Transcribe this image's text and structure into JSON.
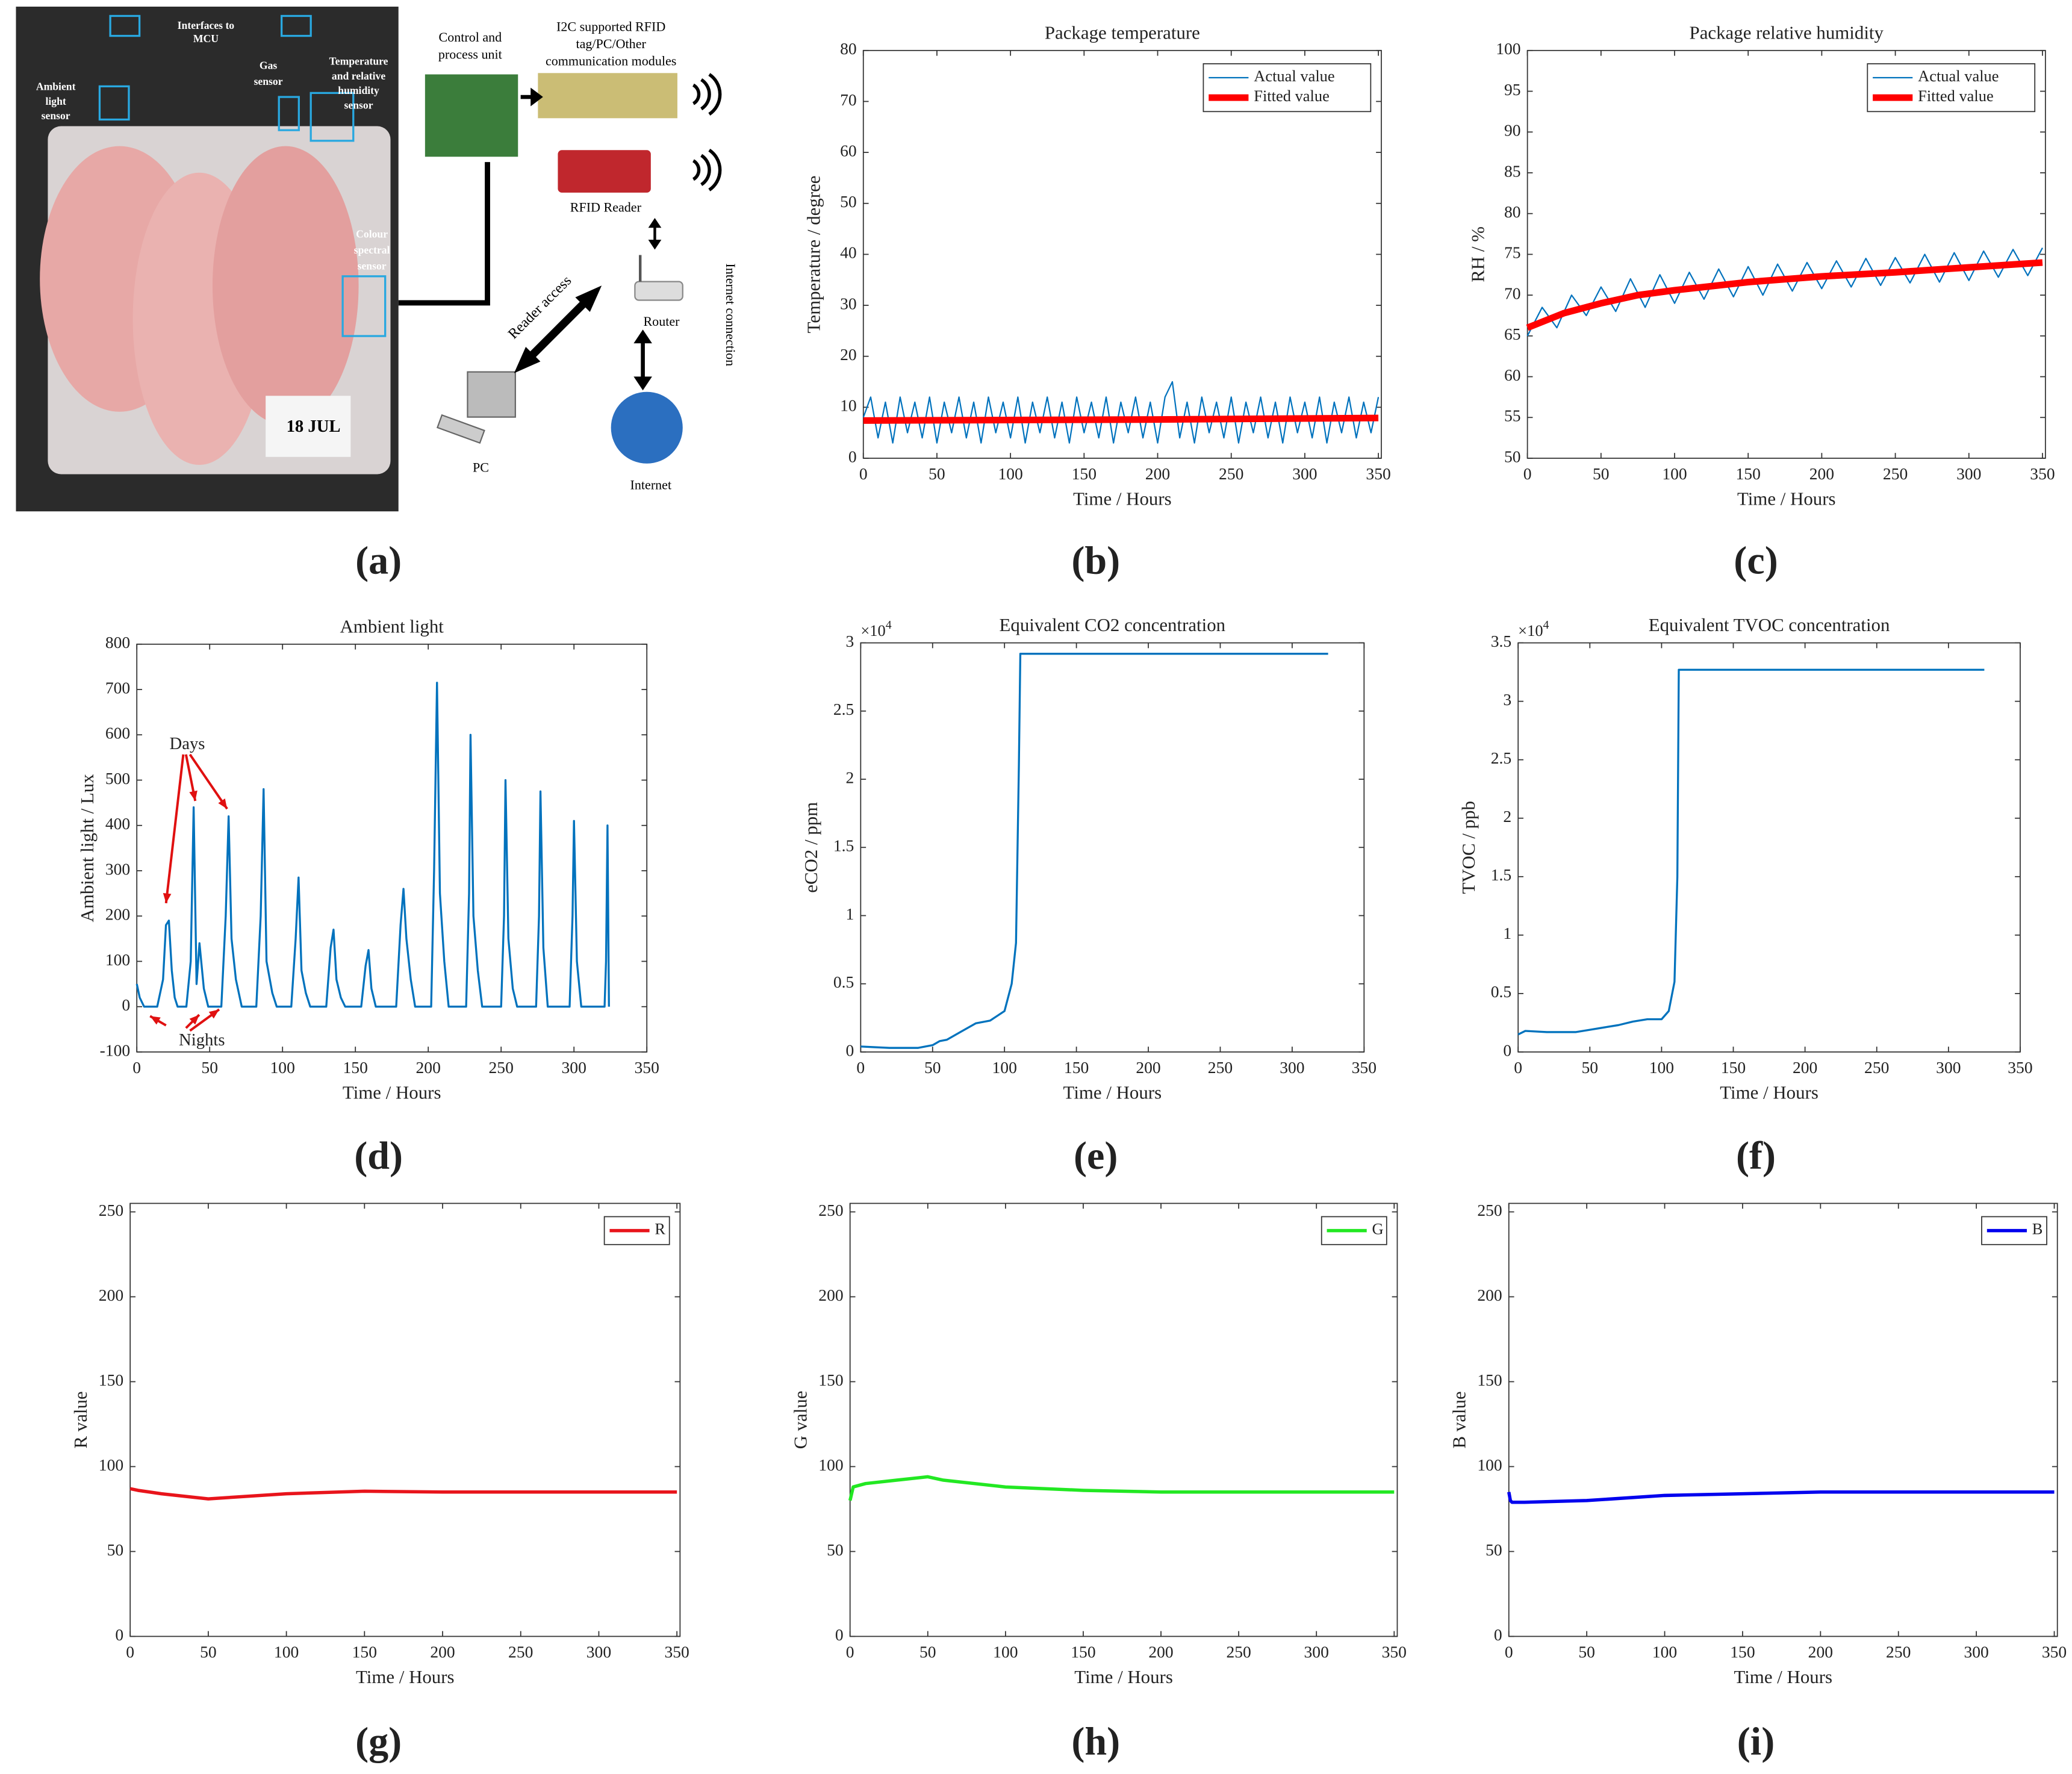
{
  "diagram": {
    "panel_label": "(a)",
    "labels": [
      [
        "Interfaces to",
        "MCU"
      ],
      [
        "Ambient",
        "light",
        "sensor"
      ],
      [
        "Gas",
        "sensor"
      ],
      [
        "Temperature",
        "and relative",
        "humidity",
        "sensor"
      ],
      [
        "Colour",
        "spectral",
        "sensor"
      ],
      [
        "18 JUL"
      ],
      [
        "Control and",
        "process unit"
      ],
      [
        "I2C supported RFID",
        "tag/PC/Other",
        "communication modules"
      ],
      [
        "RFID Reader"
      ],
      [
        "Router"
      ],
      [
        "Internet connection"
      ],
      [
        "Reader access"
      ],
      [
        "PC"
      ],
      [
        "Internet"
      ]
    ]
  },
  "chart_data": [
    {
      "type": "line",
      "panel_label": "(b)",
      "title": "Package temperature",
      "xlabel": "Time / Hours",
      "ylabel": "Temperature / degree",
      "xlim": [
        0,
        352
      ],
      "xticks": [
        0,
        50,
        100,
        150,
        200,
        250,
        300,
        350
      ],
      "ylim": [
        0,
        80
      ],
      "yticks": [
        0,
        10,
        20,
        30,
        40,
        50,
        60,
        70,
        80
      ],
      "legend": "upper right",
      "series": [
        {
          "name": "Actual value",
          "color": "#0072bd",
          "width": 1,
          "x": [
            0,
            5,
            10,
            15,
            20,
            25,
            30,
            35,
            40,
            45,
            50,
            55,
            60,
            65,
            70,
            75,
            80,
            85,
            90,
            95,
            100,
            105,
            110,
            115,
            120,
            125,
            130,
            135,
            140,
            145,
            150,
            155,
            160,
            165,
            170,
            175,
            180,
            185,
            190,
            195,
            200,
            205,
            210,
            215,
            220,
            225,
            230,
            235,
            240,
            245,
            250,
            255,
            260,
            265,
            270,
            275,
            280,
            285,
            290,
            295,
            300,
            305,
            310,
            315,
            320,
            325,
            330,
            335,
            340,
            345,
            350
          ],
          "values": [
            8,
            12,
            4,
            11,
            3,
            12,
            5,
            11,
            4,
            12,
            3,
            11,
            5,
            12,
            4,
            11,
            3,
            12,
            5,
            11,
            4,
            12,
            3,
            11,
            5,
            12,
            4,
            11,
            3,
            12,
            5,
            11,
            4,
            12,
            3,
            11,
            5,
            12,
            4,
            11,
            3,
            12,
            15,
            4,
            11,
            3,
            12,
            5,
            11,
            4,
            12,
            3,
            11,
            5,
            12,
            4,
            11,
            3,
            12,
            5,
            11,
            4,
            12,
            3,
            11,
            5,
            12,
            4,
            11,
            5,
            12
          ]
        },
        {
          "name": "Fitted value",
          "color": "#ff0000",
          "width": 5,
          "x": [
            0,
            100,
            200,
            350
          ],
          "values": [
            7.4,
            7.5,
            7.6,
            7.9
          ]
        }
      ]
    },
    {
      "type": "line",
      "panel_label": "(c)",
      "title": "Package relative humidity",
      "xlabel": "Time / Hours",
      "ylabel": "RH / %",
      "xlim": [
        0,
        352
      ],
      "xticks": [
        0,
        50,
        100,
        150,
        200,
        250,
        300,
        350
      ],
      "ylim": [
        50,
        100
      ],
      "yticks": [
        50,
        55,
        60,
        65,
        70,
        75,
        80,
        85,
        90,
        95,
        100
      ],
      "legend": "upper right",
      "series": [
        {
          "name": "Actual value",
          "color": "#0072bd",
          "width": 1,
          "x": [
            0,
            10,
            20,
            30,
            40,
            50,
            60,
            70,
            80,
            90,
            100,
            110,
            120,
            130,
            140,
            150,
            160,
            170,
            180,
            190,
            200,
            210,
            220,
            230,
            240,
            250,
            260,
            270,
            280,
            290,
            300,
            310,
            320,
            330,
            340,
            350
          ],
          "values": [
            65,
            68.5,
            66,
            70,
            67.5,
            71,
            68,
            72,
            68.5,
            72.5,
            69,
            72.8,
            69.5,
            73.2,
            69.8,
            73.5,
            70,
            73.8,
            70.5,
            74,
            70.8,
            74.2,
            71,
            74.5,
            71.2,
            74.6,
            71.5,
            75,
            71.6,
            75.2,
            71.8,
            75.4,
            72.2,
            75.6,
            72.4,
            75.8
          ]
        },
        {
          "name": "Fitted value",
          "color": "#ff0000",
          "width": 5,
          "x": [
            0,
            25,
            50,
            75,
            100,
            150,
            200,
            250,
            300,
            350
          ],
          "values": [
            66,
            67.8,
            69,
            70,
            70.6,
            71.6,
            72.3,
            72.8,
            73.4,
            74
          ]
        }
      ]
    },
    {
      "type": "line",
      "panel_label": "(d)",
      "title": "Ambient light",
      "xlabel": "Time / Hours",
      "ylabel": "Ambient light / Lux",
      "xlim": [
        0,
        350
      ],
      "xticks": [
        0,
        50,
        100,
        150,
        200,
        250,
        300,
        350
      ],
      "ylim": [
        -100,
        800
      ],
      "yticks": [
        -100,
        0,
        100,
        200,
        300,
        400,
        500,
        600,
        700,
        800
      ],
      "annotations": [
        "Days",
        "Nights"
      ],
      "series": [
        {
          "color": "#0072bd",
          "width": 1.5,
          "x": [
            0,
            2,
            5,
            10,
            14,
            18,
            20,
            22,
            24,
            26,
            28,
            34,
            37,
            39,
            41,
            43,
            46,
            49,
            58,
            61,
            63,
            65,
            68,
            72,
            82,
            85,
            87,
            89,
            93,
            96,
            106,
            109,
            111,
            113,
            116,
            119,
            130,
            133,
            135,
            137,
            140,
            143,
            154,
            157,
            159,
            161,
            164,
            178,
            181,
            183,
            185,
            188,
            191,
            202,
            204,
            206,
            208,
            211,
            214,
            226,
            228,
            229,
            231,
            234,
            237,
            250,
            252,
            253,
            255,
            258,
            261,
            274,
            276,
            277,
            279,
            282,
            297,
            299,
            300,
            302,
            305,
            321,
            322,
            323,
            324
          ],
          "values": [
            50,
            20,
            0,
            0,
            0,
            60,
            180,
            190,
            80,
            20,
            0,
            0,
            100,
            440,
            50,
            140,
            40,
            0,
            0,
            200,
            420,
            150,
            60,
            0,
            0,
            200,
            480,
            100,
            30,
            0,
            0,
            150,
            285,
            80,
            30,
            0,
            0,
            130,
            170,
            60,
            20,
            0,
            0,
            90,
            125,
            40,
            0,
            0,
            180,
            260,
            150,
            60,
            0,
            0,
            300,
            715,
            250,
            100,
            0,
            0,
            250,
            600,
            200,
            80,
            0,
            0,
            200,
            500,
            150,
            40,
            0,
            0,
            200,
            475,
            130,
            0,
            0,
            200,
            410,
            100,
            0,
            0,
            100,
            400,
            0
          ]
        }
      ]
    },
    {
      "type": "line",
      "panel_label": "(e)",
      "title": "Equivalent CO2 concentration",
      "xlabel": "Time / Hours",
      "ylabel": "eCO2 / ppm",
      "y_multiplier": "×10",
      "y_multiplier_exponent": "4",
      "xlim": [
        0,
        350
      ],
      "xticks": [
        0,
        50,
        100,
        150,
        200,
        250,
        300,
        350
      ],
      "ylim": [
        0,
        3
      ],
      "yticks": [
        0,
        0.5,
        1,
        1.5,
        2,
        2.5,
        3
      ],
      "series": [
        {
          "color": "#0072bd",
          "width": 1.5,
          "x": [
            0,
            10,
            20,
            40,
            50,
            55,
            60,
            70,
            80,
            90,
            100,
            105,
            108,
            110,
            111,
            112,
            325
          ],
          "values": [
            0.04,
            0.035,
            0.03,
            0.03,
            0.05,
            0.08,
            0.09,
            0.15,
            0.21,
            0.23,
            0.3,
            0.5,
            0.8,
            2.1,
            2.92,
            2.92,
            2.92
          ]
        }
      ]
    },
    {
      "type": "line",
      "panel_label": "(f)",
      "title": "Equivalent TVOC concentration",
      "xlabel": "Time / Hours",
      "ylabel": "TVOC / ppb",
      "y_multiplier": "×10",
      "y_multiplier_exponent": "4",
      "xlim": [
        0,
        350
      ],
      "xticks": [
        0,
        50,
        100,
        150,
        200,
        250,
        300,
        350
      ],
      "ylim": [
        0,
        3.5
      ],
      "yticks": [
        0,
        0.5,
        1,
        1.5,
        2,
        2.5,
        3,
        3.5
      ],
      "series": [
        {
          "color": "#0072bd",
          "width": 1.5,
          "x": [
            0,
            5,
            20,
            40,
            50,
            60,
            70,
            80,
            90,
            100,
            105,
            109,
            111,
            112,
            113,
            325
          ],
          "values": [
            0.15,
            0.18,
            0.17,
            0.17,
            0.19,
            0.21,
            0.23,
            0.26,
            0.28,
            0.28,
            0.35,
            0.6,
            1.5,
            3.27,
            3.27,
            3.27
          ]
        }
      ]
    },
    {
      "type": "line",
      "panel_label": "(g)",
      "xlabel": "Time / Hours",
      "ylabel": "R value",
      "legend": "upper right",
      "xlim": [
        0,
        352
      ],
      "xticks": [
        0,
        50,
        100,
        150,
        200,
        250,
        300,
        350
      ],
      "ylim": [
        0,
        255
      ],
      "yticks": [
        0,
        50,
        100,
        150,
        200,
        250
      ],
      "series": [
        {
          "name": "R",
          "color": "#e8141b",
          "width": 2.5,
          "x": [
            0,
            5,
            20,
            50,
            100,
            150,
            200,
            350
          ],
          "values": [
            87,
            86,
            84,
            81,
            84,
            85.5,
            85,
            85
          ]
        }
      ]
    },
    {
      "type": "line",
      "panel_label": "(h)",
      "xlabel": "Time / Hours",
      "ylabel": "G value",
      "legend": "upper right",
      "xlim": [
        0,
        352
      ],
      "xticks": [
        0,
        50,
        100,
        150,
        200,
        250,
        300,
        350
      ],
      "ylim": [
        0,
        255
      ],
      "yticks": [
        0,
        50,
        100,
        150,
        200,
        250
      ],
      "series": [
        {
          "name": "G",
          "color": "#22e822",
          "width": 2.5,
          "x": [
            0,
            2,
            10,
            30,
            50,
            60,
            100,
            150,
            200,
            350
          ],
          "values": [
            80,
            88,
            90,
            92,
            94,
            92,
            88,
            86,
            85,
            85
          ]
        }
      ]
    },
    {
      "type": "line",
      "panel_label": "(i)",
      "xlabel": "Time / Hours",
      "ylabel": "B value",
      "legend": "upper right",
      "xlim": [
        0,
        352
      ],
      "xticks": [
        0,
        50,
        100,
        150,
        200,
        250,
        300,
        350
      ],
      "ylim": [
        0,
        255
      ],
      "yticks": [
        0,
        50,
        100,
        150,
        200,
        250
      ],
      "series": [
        {
          "name": "B",
          "color": "#0000ee",
          "width": 2.5,
          "x": [
            0,
            1,
            2,
            10,
            50,
            100,
            150,
            200,
            350
          ],
          "values": [
            85,
            80,
            79,
            79,
            80,
            83,
            84,
            85,
            85
          ]
        }
      ]
    }
  ]
}
